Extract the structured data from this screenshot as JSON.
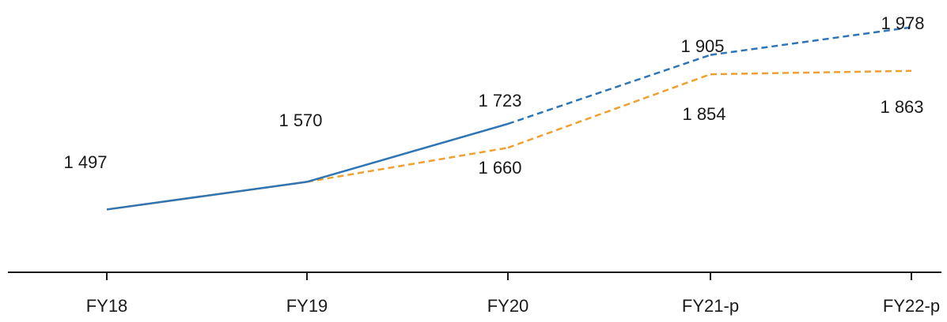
{
  "chart_data": {
    "type": "line",
    "categories": [
      "FY18",
      "FY19",
      "FY20",
      "FY21-p",
      "FY22-p"
    ],
    "series": [
      {
        "values": [
          1497,
          1570,
          1723,
          1905,
          1978
        ],
        "labels": [
          "1 497",
          "1 570",
          "1 723",
          "1 905",
          "1 978"
        ],
        "color": "#2e75b6",
        "dashed_from_index": 2
      },
      {
        "values": [
          1497,
          1570,
          1660,
          1854,
          1863
        ],
        "labels": [
          "",
          "",
          "1 660",
          "1 854",
          "1 863"
        ],
        "color": "#f0a030",
        "dashed_from_index": 1
      }
    ],
    "ylim": [
      1200,
      2050
    ],
    "grid": false,
    "legend": "none",
    "title": "",
    "xlabel": "",
    "ylabel": ""
  }
}
